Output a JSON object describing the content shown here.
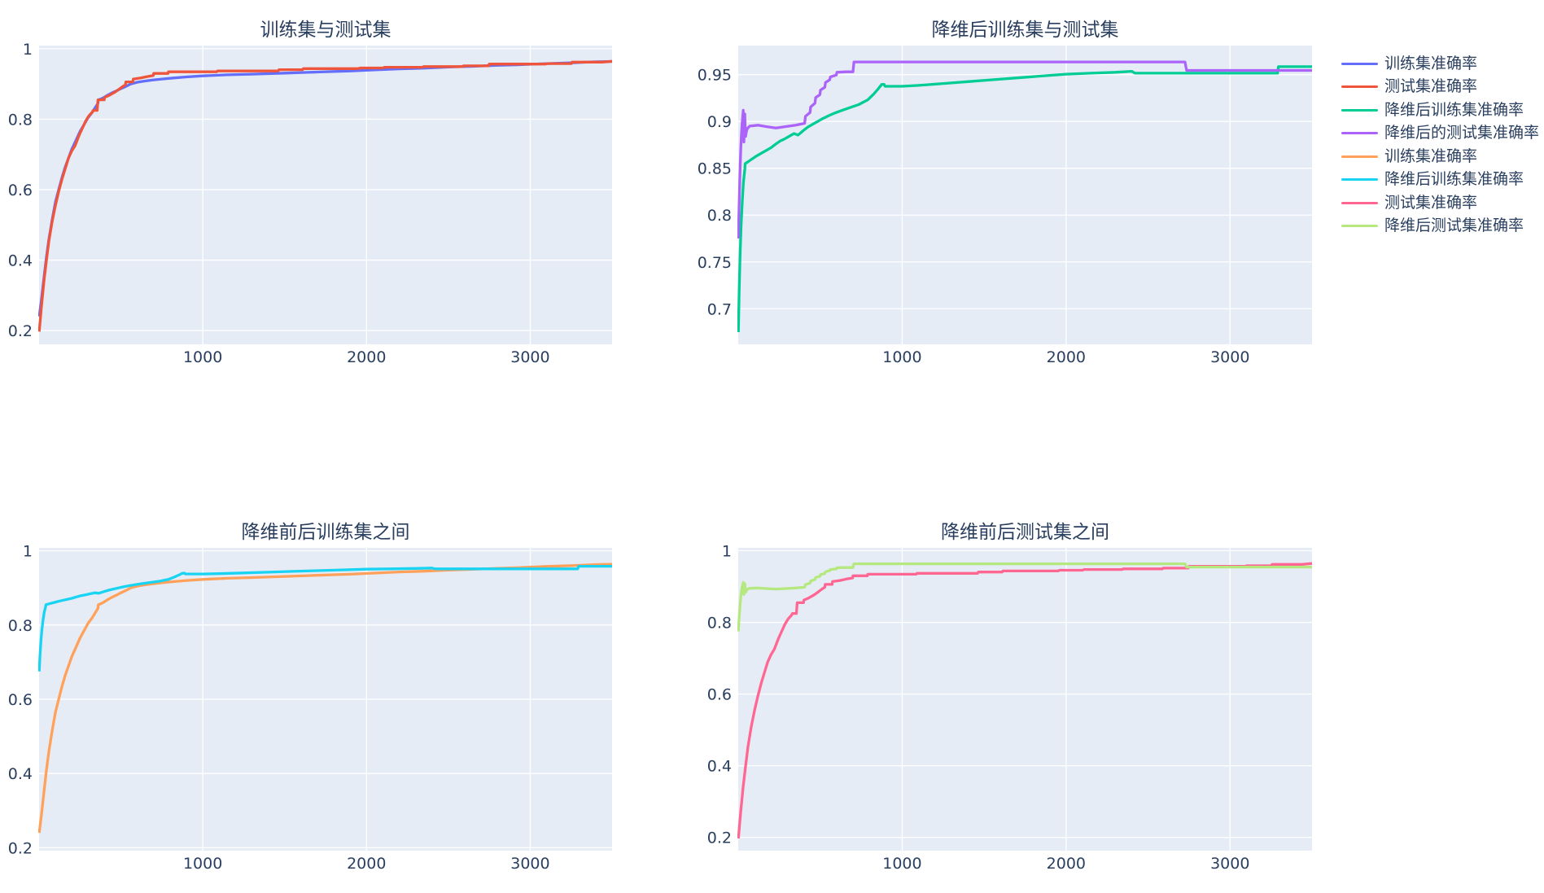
{
  "figure": {
    "background_color": "#ffffff",
    "plot_background_color": "#E5ECF6",
    "grid_color": "#ffffff",
    "text_color": "#2a3f5f"
  },
  "legend": {
    "items": [
      {
        "label": "训练集准确率",
        "color": "#636EFA"
      },
      {
        "label": "测试集准确率",
        "color": "#EF553B"
      },
      {
        "label": "降维后训练集准确率",
        "color": "#00CC96"
      },
      {
        "label": "降维后的测试集准确率",
        "color": "#AB63FA"
      },
      {
        "label": "训练集准确率",
        "color": "#FFA15A"
      },
      {
        "label": "降维后训练集准确率",
        "color": "#19D3F3"
      },
      {
        "label": "测试集准确率",
        "color": "#FF6692"
      },
      {
        "label": "降维后测试集准确率",
        "color": "#B6E880"
      }
    ]
  },
  "chart_data": {
    "type": "line",
    "x_range": [
      0,
      3500
    ],
    "x_ticks": [
      1000,
      2000,
      3000
    ],
    "grid": true,
    "legend_position": "right",
    "series_points": {
      "train": [
        [
          1,
          0.24
        ],
        [
          15,
          0.29
        ],
        [
          30,
          0.35
        ],
        [
          45,
          0.41
        ],
        [
          60,
          0.46
        ],
        [
          80,
          0.515
        ],
        [
          100,
          0.565
        ],
        [
          120,
          0.6
        ],
        [
          140,
          0.635
        ],
        [
          160,
          0.665
        ],
        [
          180,
          0.69
        ],
        [
          200,
          0.715
        ],
        [
          225,
          0.74
        ],
        [
          250,
          0.765
        ],
        [
          275,
          0.785
        ],
        [
          300,
          0.805
        ],
        [
          325,
          0.82
        ],
        [
          350,
          0.838
        ],
        [
          360,
          0.845
        ],
        [
          362,
          0.855
        ],
        [
          380,
          0.858
        ],
        [
          400,
          0.863
        ],
        [
          425,
          0.87
        ],
        [
          450,
          0.876
        ],
        [
          475,
          0.881
        ],
        [
          500,
          0.887
        ],
        [
          530,
          0.893
        ],
        [
          560,
          0.9
        ],
        [
          600,
          0.905
        ],
        [
          640,
          0.908
        ],
        [
          690,
          0.911
        ],
        [
          750,
          0.914
        ],
        [
          820,
          0.917
        ],
        [
          900,
          0.92
        ],
        [
          1000,
          0.923
        ],
        [
          1150,
          0.926
        ],
        [
          1300,
          0.928
        ],
        [
          1500,
          0.931
        ],
        [
          1700,
          0.934
        ],
        [
          1900,
          0.937
        ],
        [
          2050,
          0.94
        ],
        [
          2200,
          0.943
        ],
        [
          2350,
          0.945
        ],
        [
          2500,
          0.948
        ],
        [
          2650,
          0.95
        ],
        [
          2800,
          0.953
        ],
        [
          2950,
          0.955
        ],
        [
          3100,
          0.958
        ],
        [
          3250,
          0.96
        ],
        [
          3400,
          0.963
        ],
        [
          3500,
          0.964
        ]
      ],
      "test": [
        [
          1,
          0.197
        ],
        [
          15,
          0.27
        ],
        [
          30,
          0.34
        ],
        [
          45,
          0.4
        ],
        [
          60,
          0.455
        ],
        [
          80,
          0.51
        ],
        [
          100,
          0.555
        ],
        [
          120,
          0.595
        ],
        [
          140,
          0.63
        ],
        [
          160,
          0.66
        ],
        [
          180,
          0.69
        ],
        [
          200,
          0.71
        ],
        [
          220,
          0.725
        ],
        [
          245,
          0.755
        ],
        [
          265,
          0.775
        ],
        [
          285,
          0.795
        ],
        [
          305,
          0.81
        ],
        [
          325,
          0.82
        ],
        [
          330,
          0.825
        ],
        [
          355,
          0.825
        ],
        [
          358,
          0.845
        ],
        [
          360,
          0.855
        ],
        [
          398,
          0.855
        ],
        [
          400,
          0.862
        ],
        [
          430,
          0.868
        ],
        [
          460,
          0.876
        ],
        [
          485,
          0.884
        ],
        [
          505,
          0.891
        ],
        [
          528,
          0.898
        ],
        [
          530,
          0.906
        ],
        [
          573,
          0.906
        ],
        [
          575,
          0.914
        ],
        [
          620,
          0.917
        ],
        [
          660,
          0.921
        ],
        [
          698,
          0.924
        ],
        [
          700,
          0.93
        ],
        [
          788,
          0.93
        ],
        [
          790,
          0.9345
        ],
        [
          1085,
          0.9345
        ],
        [
          1090,
          0.937
        ],
        [
          1460,
          0.937
        ],
        [
          1465,
          0.9405
        ],
        [
          1610,
          0.9405
        ],
        [
          1615,
          0.9435
        ],
        [
          1950,
          0.9435
        ],
        [
          1960,
          0.9455
        ],
        [
          2100,
          0.9455
        ],
        [
          2110,
          0.9475
        ],
        [
          2340,
          0.9475
        ],
        [
          2350,
          0.9495
        ],
        [
          2588,
          0.9495
        ],
        [
          2592,
          0.9515
        ],
        [
          2745,
          0.9515
        ],
        [
          2750,
          0.9565
        ],
        [
          3095,
          0.9565
        ],
        [
          3100,
          0.958
        ],
        [
          3252,
          0.958
        ],
        [
          3256,
          0.962
        ],
        [
          3440,
          0.962
        ],
        [
          3500,
          0.9645
        ]
      ],
      "train_pca": [
        [
          1,
          0.675
        ],
        [
          6,
          0.72
        ],
        [
          12,
          0.76
        ],
        [
          18,
          0.79
        ],
        [
          25,
          0.815
        ],
        [
          32,
          0.835
        ],
        [
          40,
          0.849
        ],
        [
          42,
          0.855
        ],
        [
          60,
          0.857
        ],
        [
          85,
          0.86
        ],
        [
          110,
          0.863
        ],
        [
          140,
          0.866
        ],
        [
          170,
          0.869
        ],
        [
          200,
          0.872
        ],
        [
          230,
          0.876
        ],
        [
          255,
          0.879
        ],
        [
          280,
          0.881
        ],
        [
          310,
          0.884
        ],
        [
          340,
          0.887
        ],
        [
          365,
          0.8855
        ],
        [
          395,
          0.89
        ],
        [
          425,
          0.894
        ],
        [
          455,
          0.897
        ],
        [
          485,
          0.9
        ],
        [
          515,
          0.903
        ],
        [
          550,
          0.906
        ],
        [
          590,
          0.909
        ],
        [
          635,
          0.912
        ],
        [
          685,
          0.915
        ],
        [
          735,
          0.918
        ],
        [
          790,
          0.923
        ],
        [
          825,
          0.929
        ],
        [
          855,
          0.935
        ],
        [
          875,
          0.9395
        ],
        [
          890,
          0.9395
        ],
        [
          895,
          0.9375
        ],
        [
          1000,
          0.9375
        ],
        [
          1100,
          0.9385
        ],
        [
          1250,
          0.9405
        ],
        [
          1400,
          0.9425
        ],
        [
          1550,
          0.9445
        ],
        [
          1700,
          0.9465
        ],
        [
          1850,
          0.9485
        ],
        [
          2000,
          0.9505
        ],
        [
          2150,
          0.9515
        ],
        [
          2300,
          0.9525
        ],
        [
          2400,
          0.9535
        ],
        [
          2420,
          0.9515
        ],
        [
          2700,
          0.9515
        ],
        [
          3290,
          0.9515
        ],
        [
          3295,
          0.9585
        ],
        [
          3500,
          0.9585
        ]
      ],
      "test_pca": [
        [
          1,
          0.775
        ],
        [
          4,
          0.8
        ],
        [
          8,
          0.827
        ],
        [
          12,
          0.852
        ],
        [
          16,
          0.872
        ],
        [
          20,
          0.887
        ],
        [
          24,
          0.898
        ],
        [
          28,
          0.906
        ],
        [
          31,
          0.912
        ],
        [
          33,
          0.895
        ],
        [
          35,
          0.878
        ],
        [
          38,
          0.897
        ],
        [
          40,
          0.908
        ],
        [
          43,
          0.89
        ],
        [
          45,
          0.884
        ],
        [
          50,
          0.8895
        ],
        [
          56,
          0.8925
        ],
        [
          70,
          0.895
        ],
        [
          120,
          0.896
        ],
        [
          170,
          0.8945
        ],
        [
          230,
          0.893
        ],
        [
          290,
          0.8945
        ],
        [
          350,
          0.896
        ],
        [
          405,
          0.898
        ],
        [
          410,
          0.9055
        ],
        [
          438,
          0.9095
        ],
        [
          442,
          0.9155
        ],
        [
          468,
          0.9195
        ],
        [
          472,
          0.9255
        ],
        [
          498,
          0.9285
        ],
        [
          502,
          0.9335
        ],
        [
          528,
          0.9365
        ],
        [
          532,
          0.9415
        ],
        [
          558,
          0.9445
        ],
        [
          562,
          0.9475
        ],
        [
          598,
          0.9495
        ],
        [
          602,
          0.9525
        ],
        [
          658,
          0.953
        ],
        [
          700,
          0.953
        ],
        [
          706,
          0.9635
        ],
        [
          2725,
          0.9635
        ],
        [
          2735,
          0.9545
        ],
        [
          3500,
          0.9545
        ]
      ]
    },
    "subplots": [
      {
        "title": "训练集与测试集",
        "x_tick_labels": [
          "1000",
          "2000",
          "3000"
        ],
        "y_ticks": [
          0.2,
          0.4,
          0.6,
          0.8,
          1
        ],
        "y_tick_labels": [
          "0.2",
          "0.4",
          "0.6",
          "0.8",
          "1"
        ],
        "y_range": [
          0.161,
          1.009
        ],
        "traces": [
          {
            "name": "训练集准确率",
            "series": "train",
            "color": "#636EFA"
          },
          {
            "name": "测试集准确率",
            "series": "test",
            "color": "#EF553B"
          }
        ]
      },
      {
        "title": "降维后训练集与测试集",
        "x_tick_labels": [
          "1000",
          "2000",
          "3000"
        ],
        "y_ticks": [
          0.7,
          0.75,
          0.8,
          0.85,
          0.9,
          0.95
        ],
        "y_tick_labels": [
          "0.7",
          "0.75",
          "0.8",
          "0.85",
          "0.9",
          "0.95"
        ],
        "y_range": [
          0.662,
          0.981
        ],
        "traces": [
          {
            "name": "降维后训练集准确率",
            "series": "train_pca",
            "color": "#00CC96"
          },
          {
            "name": "降维后的测试集准确率",
            "series": "test_pca",
            "color": "#AB63FA"
          }
        ]
      },
      {
        "title": "降维前后训练集之间",
        "x_tick_labels": [
          "1000",
          "2000",
          "3000"
        ],
        "y_ticks": [
          0.2,
          0.4,
          0.6,
          0.8,
          1
        ],
        "y_tick_labels": [
          "0.2",
          "0.4",
          "0.6",
          "0.8",
          "1"
        ],
        "y_range": [
          0.192,
          1.008
        ],
        "traces": [
          {
            "name": "训练集准确率",
            "series": "train",
            "color": "#FFA15A"
          },
          {
            "name": "降维后训练集准确率",
            "series": "train_pca",
            "color": "#19D3F3"
          }
        ]
      },
      {
        "title": "降维前后测试集之间",
        "x_tick_labels": [
          "1000",
          "2000",
          "3000"
        ],
        "y_ticks": [
          0.2,
          0.4,
          0.6,
          0.8,
          1
        ],
        "y_tick_labels": [
          "0.2",
          "0.4",
          "0.6",
          "0.8",
          "1"
        ],
        "y_range": [
          0.163,
          1.008
        ],
        "traces": [
          {
            "name": "测试集准确率",
            "series": "test",
            "color": "#FF6692"
          },
          {
            "name": "降维后测试集准确率",
            "series": "test_pca",
            "color": "#B6E880"
          }
        ]
      }
    ]
  }
}
